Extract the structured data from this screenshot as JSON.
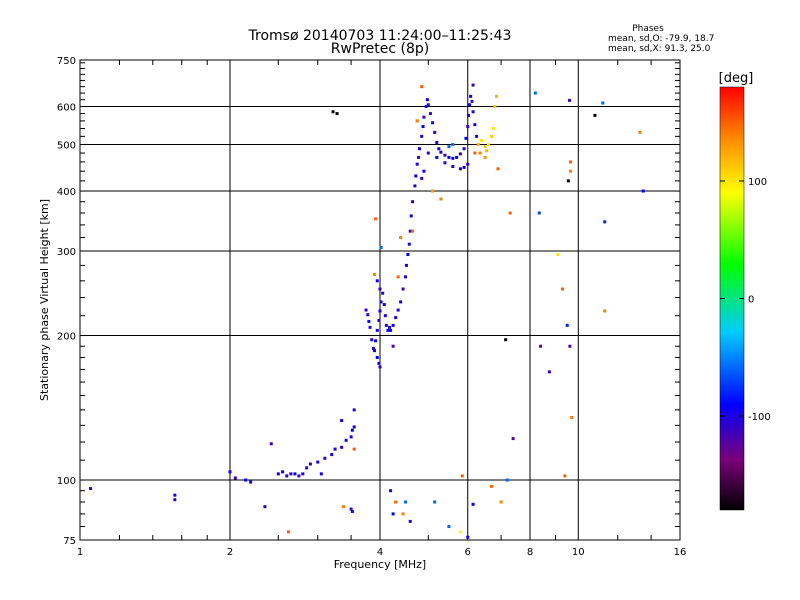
{
  "chart_data": {
    "type": "scatter",
    "title": "Tromsø 20140703 11:24:00–11:25:43",
    "subtitle": "RwPretec (8p)",
    "stats": {
      "heading": "Phases",
      "line1": "mean, sd,O: -79.9, 18.7",
      "line2": "mean, sd,X:  91.3, 25.0"
    },
    "xlabel": "Frequency [MHz]",
    "ylabel": "Stationary phase Virtual Height [km]",
    "xscale": "log",
    "yscale": "log",
    "xlim": [
      1,
      16
    ],
    "ylim": [
      75,
      750
    ],
    "xticks": [
      1,
      2,
      4,
      6,
      8,
      10,
      16
    ],
    "xtick_labels": [
      "1",
      "2",
      "4",
      "6",
      "8",
      "10",
      "16"
    ],
    "yticks": [
      75,
      100,
      200,
      300,
      400,
      500,
      600,
      750
    ],
    "ytick_labels": [
      "75",
      "100",
      "200",
      "300",
      "400",
      "500",
      "600",
      "750"
    ],
    "grid": true,
    "colorbar": {
      "label": "[deg]",
      "min": -180,
      "max": 180,
      "ticks": [
        100,
        0,
        -100
      ],
      "tick_labels": [
        "100",
        "0",
        "-100"
      ]
    },
    "series": [
      {
        "color_by": "phase_deg",
        "points": [
          [
            1.05,
            96,
            -110
          ],
          [
            1.55,
            93,
            -100
          ],
          [
            1.55,
            91,
            -110
          ],
          [
            2.0,
            104,
            -95
          ],
          [
            2.05,
            101,
            -110
          ],
          [
            2.15,
            100,
            -90
          ],
          [
            2.2,
            99,
            -100
          ],
          [
            2.35,
            88,
            -100
          ],
          [
            2.42,
            119,
            -110
          ],
          [
            2.5,
            103,
            -95
          ],
          [
            2.55,
            104,
            -90
          ],
          [
            2.6,
            102,
            -100
          ],
          [
            2.65,
            103,
            -105
          ],
          [
            2.7,
            103,
            -90
          ],
          [
            2.75,
            102,
            -110
          ],
          [
            2.8,
            103,
            -95
          ],
          [
            2.85,
            106,
            -100
          ],
          [
            2.9,
            108,
            -110
          ],
          [
            2.62,
            78,
            150
          ],
          [
            3.0,
            109,
            -100
          ],
          [
            3.1,
            111,
            -110
          ],
          [
            3.2,
            113,
            -95
          ],
          [
            3.25,
            116,
            -100
          ],
          [
            3.35,
            117,
            -110
          ],
          [
            3.42,
            121,
            -95
          ],
          [
            3.5,
            123,
            -100
          ],
          [
            3.52,
            127,
            -90
          ],
          [
            3.55,
            129,
            -105
          ],
          [
            3.35,
            133,
            -95
          ],
          [
            3.55,
            140,
            -100
          ],
          [
            3.55,
            116,
            150
          ],
          [
            3.5,
            87,
            -110
          ],
          [
            3.52,
            86,
            -95
          ],
          [
            3.38,
            88,
            140
          ],
          [
            3.75,
            226,
            -110
          ],
          [
            3.78,
            221,
            -100
          ],
          [
            3.8,
            214,
            -95
          ],
          [
            3.82,
            208,
            -110
          ],
          [
            3.85,
            196,
            -100
          ],
          [
            3.88,
            188,
            -105
          ],
          [
            3.9,
            186,
            -95
          ],
          [
            3.92,
            195,
            -90
          ],
          [
            3.95,
            205,
            -100
          ],
          [
            3.98,
            215,
            -110
          ],
          [
            4.0,
            225,
            -95
          ],
          [
            4.02,
            235,
            -100
          ],
          [
            4.05,
            245,
            -105
          ],
          [
            4.08,
            232,
            -90
          ],
          [
            4.1,
            220,
            -100
          ],
          [
            4.12,
            210,
            -110
          ],
          [
            4.15,
            205,
            -95
          ],
          [
            4.18,
            208,
            -100
          ],
          [
            3.95,
            180,
            -90
          ],
          [
            3.98,
            175,
            -100
          ],
          [
            4.0,
            172,
            -110
          ],
          [
            3.9,
            268,
            140
          ],
          [
            3.92,
            350,
            150
          ],
          [
            4.02,
            305,
            -60
          ],
          [
            3.95,
            260,
            -100
          ],
          [
            4.0,
            250,
            -110
          ],
          [
            4.2,
            205,
            -100
          ],
          [
            4.25,
            210,
            -90
          ],
          [
            4.3,
            218,
            -105
          ],
          [
            4.35,
            226,
            -100
          ],
          [
            4.4,
            235,
            -95
          ],
          [
            4.45,
            250,
            -110
          ],
          [
            4.5,
            265,
            -100
          ],
          [
            4.52,
            280,
            -95
          ],
          [
            4.55,
            295,
            -90
          ],
          [
            4.58,
            310,
            -100
          ],
          [
            4.6,
            330,
            -110
          ],
          [
            4.62,
            355,
            -95
          ],
          [
            4.65,
            380,
            -100
          ],
          [
            4.7,
            410,
            -105
          ],
          [
            4.72,
            430,
            -95
          ],
          [
            4.75,
            455,
            -100
          ],
          [
            4.78,
            470,
            -110
          ],
          [
            4.8,
            490,
            -95
          ],
          [
            4.85,
            520,
            -100
          ],
          [
            4.88,
            545,
            -90
          ],
          [
            4.9,
            570,
            -110
          ],
          [
            4.95,
            600,
            -100
          ],
          [
            4.98,
            620,
            -95
          ],
          [
            5.0,
            605,
            -100
          ],
          [
            5.05,
            580,
            -110
          ],
          [
            5.1,
            555,
            -95
          ],
          [
            5.15,
            530,
            -100
          ],
          [
            5.2,
            505,
            -105
          ],
          [
            5.25,
            490,
            -95
          ],
          [
            5.3,
            482,
            -100
          ],
          [
            5.4,
            475,
            -110
          ],
          [
            5.5,
            470,
            -95
          ],
          [
            5.6,
            468,
            -100
          ],
          [
            5.7,
            470,
            -90
          ],
          [
            5.8,
            478,
            -105
          ],
          [
            5.9,
            490,
            -100
          ],
          [
            5.95,
            515,
            -95
          ],
          [
            6.0,
            545,
            -110
          ],
          [
            6.02,
            575,
            -100
          ],
          [
            6.05,
            605,
            -95
          ],
          [
            6.08,
            630,
            -100
          ],
          [
            6.12,
            615,
            -110
          ],
          [
            6.15,
            585,
            -100
          ],
          [
            6.2,
            550,
            -95
          ],
          [
            6.25,
            520,
            -100
          ],
          [
            6.0,
            455,
            -110
          ],
          [
            5.9,
            448,
            -100
          ],
          [
            5.8,
            445,
            -95
          ],
          [
            5.6,
            450,
            -100
          ],
          [
            5.4,
            458,
            -105
          ],
          [
            5.2,
            470,
            -95
          ],
          [
            5.0,
            480,
            -100
          ],
          [
            4.9,
            440,
            -95
          ],
          [
            4.85,
            425,
            -110
          ],
          [
            5.5,
            495,
            -60
          ],
          [
            5.6,
            500,
            -55
          ],
          [
            4.75,
            560,
            150
          ],
          [
            4.85,
            660,
            150
          ],
          [
            5.1,
            400,
            130
          ],
          [
            5.3,
            385,
            140
          ],
          [
            6.3,
            500,
            120
          ],
          [
            6.4,
            510,
            100
          ],
          [
            6.5,
            495,
            110
          ],
          [
            6.55,
            485,
            120
          ],
          [
            6.6,
            500,
            100
          ],
          [
            6.7,
            520,
            110
          ],
          [
            6.75,
            540,
            100
          ],
          [
            6.8,
            600,
            110
          ],
          [
            6.85,
            630,
            120
          ],
          [
            6.5,
            470,
            130
          ],
          [
            6.35,
            480,
            140
          ],
          [
            6.9,
            445,
            150
          ],
          [
            6.15,
            665,
            -110
          ],
          [
            6.2,
            480,
            150
          ],
          [
            5.15,
            90,
            -60
          ],
          [
            4.75,
            560,
            140
          ],
          [
            4.35,
            265,
            150
          ],
          [
            4.25,
            190,
            -120
          ],
          [
            4.4,
            320,
            140
          ],
          [
            4.65,
            330,
            150
          ],
          [
            4.2,
            95,
            -100
          ],
          [
            4.25,
            85,
            -90
          ],
          [
            4.3,
            90,
            150
          ],
          [
            4.5,
            90,
            -60
          ],
          [
            4.45,
            85,
            140
          ],
          [
            4.6,
            82,
            -100
          ],
          [
            5.5,
            80,
            -60
          ],
          [
            5.8,
            78,
            90
          ],
          [
            6.0,
            76,
            -100
          ],
          [
            5.85,
            102,
            150
          ],
          [
            6.15,
            89,
            -90
          ],
          [
            6.7,
            97,
            150
          ],
          [
            7.0,
            90,
            140
          ],
          [
            7.2,
            100,
            -60
          ],
          [
            7.15,
            196,
            -200
          ],
          [
            7.4,
            122,
            -120
          ],
          [
            7.3,
            360,
            150
          ],
          [
            8.2,
            640,
            -60
          ],
          [
            8.35,
            360,
            -70
          ],
          [
            8.4,
            190,
            -130
          ],
          [
            8.75,
            168,
            -110
          ],
          [
            9.1,
            295,
            100
          ],
          [
            9.3,
            250,
            150
          ],
          [
            9.4,
            102,
            150
          ],
          [
            9.5,
            210,
            -80
          ],
          [
            9.65,
            460,
            150
          ],
          [
            9.65,
            440,
            140
          ],
          [
            9.7,
            135,
            140
          ],
          [
            9.62,
            190,
            -120
          ],
          [
            9.55,
            420,
            -200
          ],
          [
            9.6,
            618,
            -110
          ],
          [
            10.8,
            575,
            -200
          ],
          [
            11.2,
            610,
            -60
          ],
          [
            11.3,
            345,
            -80
          ],
          [
            11.3,
            225,
            140
          ],
          [
            13.3,
            530,
            140
          ],
          [
            13.5,
            400,
            -90
          ],
          [
            3.22,
            585,
            -200
          ],
          [
            3.28,
            580,
            -200
          ],
          [
            3.05,
            103,
            -95
          ]
        ]
      }
    ]
  }
}
